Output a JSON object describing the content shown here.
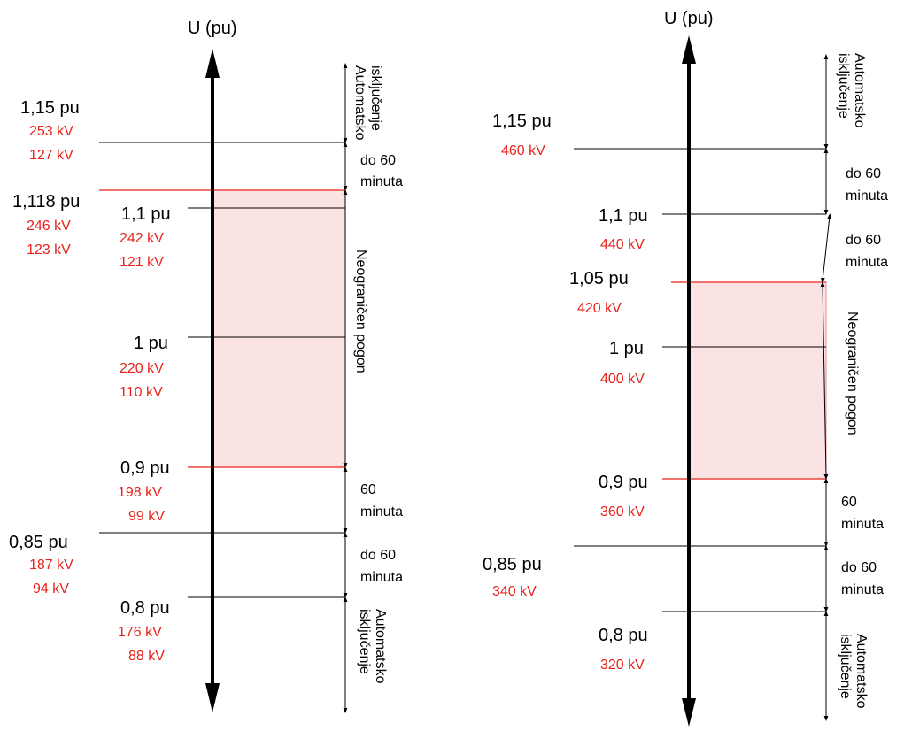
{
  "colors": {
    "accent": "#e8221b",
    "band_fill": "#fbe3e3",
    "line": "#000000"
  },
  "left_diagram": {
    "axis_label": "U (pu)",
    "levels": {
      "l115": {
        "pu": "1,15 pu",
        "kv": [
          "253 kV",
          "127 kV"
        ]
      },
      "l1118": {
        "pu": "1,118 pu",
        "kv": [
          "246 kV",
          "123 kV"
        ]
      },
      "l11": {
        "pu": "1,1 pu",
        "kv": [
          "242 kV",
          "121 kV"
        ]
      },
      "l1": {
        "pu": "1 pu",
        "kv": [
          "220 kV",
          "110 kV"
        ]
      },
      "l09": {
        "pu": "0,9 pu",
        "kv": [
          "198 kV",
          "99 kV"
        ]
      },
      "l085": {
        "pu": "0,85 pu",
        "kv": [
          "187 kV",
          "94 kV"
        ]
      },
      "l08": {
        "pu": "0,8 pu",
        "kv": [
          "176 kV",
          "88 kV"
        ]
      }
    },
    "zones": {
      "auto_top": [
        "Automatsko",
        "isključenje"
      ],
      "upper60": [
        "do 60",
        "minuta"
      ],
      "unlimited": "Neograničen pogon",
      "lower60": [
        "60",
        "minuta"
      ],
      "lower60b": [
        "do 60",
        "minuta"
      ],
      "auto_bottom": [
        "Automatsko",
        "isključenje"
      ]
    }
  },
  "right_diagram": {
    "axis_label": "U (pu)",
    "levels": {
      "l115": {
        "pu": "1,15 pu",
        "kv": "460 kV"
      },
      "l11": {
        "pu": "1,1 pu",
        "kv": "440 kV"
      },
      "l105": {
        "pu": "1,05 pu",
        "kv": "420 kV"
      },
      "l1": {
        "pu": "1 pu",
        "kv": "400 kV"
      },
      "l09": {
        "pu": "0,9 pu",
        "kv": "360 kV"
      },
      "l085": {
        "pu": "0,85 pu",
        "kv": "340 kV"
      },
      "l08": {
        "pu": "0,8 pu",
        "kv": "320 kV"
      }
    },
    "zones": {
      "auto_top": [
        "Automatsko",
        "isključenje"
      ],
      "upper60a": [
        "do 60",
        "minuta"
      ],
      "upper60b": [
        "do 60",
        "minuta"
      ],
      "unlimited": "Neograničen pogon",
      "lower60": [
        "60",
        "minuta"
      ],
      "lower60b": [
        "do 60",
        "minuta"
      ],
      "auto_bottom": [
        "Automatsko",
        "isključenje"
      ]
    }
  }
}
